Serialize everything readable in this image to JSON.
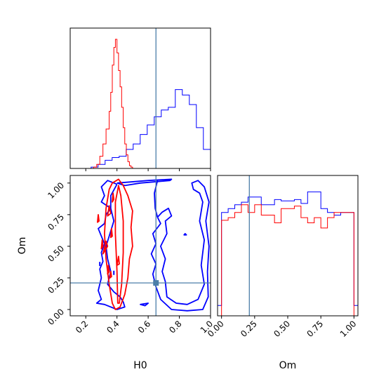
{
  "chart_data": {
    "type": "corner",
    "params": [
      "H0",
      "Om"
    ],
    "colors": {
      "series_a": "#0000ff",
      "series_b": "#ff0000",
      "truth": "#4b7ea8"
    },
    "truth": {
      "H0": 0.65,
      "Om": 0.21
    },
    "panels": {
      "H0_hist": {
        "xlim": [
          0.1,
          1.0
        ],
        "xticks": [
          0.2,
          0.4,
          0.6,
          0.8,
          1.0
        ],
        "bin_edges": [
          0.1,
          0.12,
          0.14,
          0.16,
          0.18,
          0.2,
          0.22,
          0.24,
          0.26,
          0.28,
          0.3,
          0.32,
          0.34,
          0.36,
          0.38,
          0.4,
          0.42,
          0.44,
          0.46,
          0.48,
          0.5,
          0.52,
          0.54,
          0.56,
          0.58,
          0.6,
          0.62,
          0.64,
          0.66,
          0.68,
          0.7,
          0.72,
          0.74,
          0.76,
          0.78,
          0.8,
          0.82,
          0.84,
          0.86,
          0.88,
          0.9,
          0.92,
          0.94,
          0.96,
          0.98,
          1.0
        ],
        "series": [
          {
            "color_key": "series_a",
            "edges": [
              0.1,
              0.144,
              0.189,
              0.234,
              0.279,
              0.324,
              0.369,
              0.414,
              0.459,
              0.504,
              0.549,
              0.594,
              0.639,
              0.684,
              0.729,
              0.774,
              0.819,
              0.864,
              0.909,
              0.954,
              1.0
            ],
            "counts": [
              0,
              0,
              0,
              1,
              3,
              6,
              8,
              9,
              14,
              18,
              25,
              32,
              38,
              43,
              45,
              58,
              54,
              47,
              30,
              14
            ]
          },
          {
            "color_key": "series_b",
            "edges": [
              0.1,
              0.13,
              0.15,
              0.17,
              0.19,
              0.21,
              0.23,
              0.25,
              0.27,
              0.29,
              0.31,
              0.33,
              0.35,
              0.36,
              0.37,
              0.38,
              0.39,
              0.4,
              0.41,
              0.42,
              0.43,
              0.44,
              0.45,
              0.46,
              0.47,
              0.48,
              0.49,
              0.5,
              0.52
            ],
            "counts": [
              0,
              0,
              0,
              0,
              0,
              0,
              0,
              1,
              3,
              9,
              18,
              29,
              42,
              56,
              76,
              89,
              95,
              85,
              72,
              60,
              45,
              30,
              18,
              10,
              5,
              2,
              1,
              0
            ]
          }
        ]
      },
      "Om_hist": {
        "xlim": [
          -0.03,
          1.03
        ],
        "xticks": [
          0.0,
          0.25,
          0.5,
          0.75,
          1.0
        ],
        "series": [
          {
            "color_key": "series_a",
            "edges": [
              -0.03,
              0.0,
              0.05,
              0.1,
              0.15,
              0.2,
              0.25,
              0.3,
              0.35,
              0.4,
              0.45,
              0.5,
              0.55,
              0.6,
              0.65,
              0.7,
              0.75,
              0.8,
              0.85,
              0.9,
              0.95,
              1.0,
              1.03
            ],
            "counts": [
              0.08,
              0.8,
              0.83,
              0.86,
              0.88,
              0.92,
              0.92,
              0.86,
              0.86,
              0.9,
              0.89,
              0.89,
              0.9,
              0.87,
              0.96,
              0.96,
              0.83,
              0.8,
              0.78,
              0.8,
              0.8,
              0.08
            ]
          },
          {
            "color_key": "series_b",
            "edges": [
              -0.03,
              0.0,
              0.05,
              0.1,
              0.15,
              0.2,
              0.25,
              0.3,
              0.35,
              0.4,
              0.45,
              0.5,
              0.55,
              0.6,
              0.65,
              0.7,
              0.75,
              0.8,
              0.85,
              0.9,
              0.95,
              1.0,
              1.03
            ],
            "counts": [
              0.0,
              0.74,
              0.76,
              0.8,
              0.86,
              0.8,
              0.86,
              0.78,
              0.78,
              0.72,
              0.83,
              0.83,
              0.85,
              0.76,
              0.72,
              0.76,
              0.68,
              0.76,
              0.8,
              0.8,
              0.8,
              0.0
            ]
          }
        ]
      },
      "joint": {
        "xlim": [
          0.1,
          1.0
        ],
        "ylim": [
          -0.05,
          1.06
        ],
        "xticks": [
          0.2,
          0.4,
          0.6,
          0.8,
          1.0
        ],
        "yticks": [
          0.0,
          0.25,
          0.5,
          0.75,
          1.0
        ],
        "xlabel": "H0",
        "ylabel": "Om",
        "contours": [
          {
            "color_key": "series_a",
            "closed": false,
            "points": [
              [
                0.4,
                1.0
              ],
              [
                0.6,
                1.02
              ],
              [
                0.75,
                1.03
              ],
              [
                0.74,
                1.02
              ],
              [
                0.55,
                1.0
              ],
              [
                0.45,
                0.98
              ],
              [
                0.4,
                1.0
              ]
            ]
          },
          {
            "color_key": "series_a",
            "closed": false,
            "points": [
              [
                0.66,
                0.73
              ],
              [
                0.645,
                0.8
              ],
              [
                0.64,
                0.92
              ],
              [
                0.66,
                1.02
              ]
            ]
          },
          {
            "color_key": "series_a",
            "closed": false,
            "points": [
              [
                0.4,
                0.99
              ],
              [
                0.34,
                1.02
              ],
              [
                0.3,
                0.97
              ],
              [
                0.32,
                0.9
              ],
              [
                0.3,
                0.85
              ],
              [
                0.36,
                0.8
              ],
              [
                0.33,
                0.75
              ],
              [
                0.32,
                0.68
              ],
              [
                0.28,
                0.64
              ],
              [
                0.3,
                0.58
              ],
              [
                0.32,
                0.52
              ],
              [
                0.3,
                0.45
              ],
              [
                0.31,
                0.38
              ],
              [
                0.29,
                0.32
              ],
              [
                0.3,
                0.25
              ],
              [
                0.28,
                0.15
              ],
              [
                0.3,
                0.08
              ],
              [
                0.27,
                0.05
              ],
              [
                0.32,
                0.04
              ],
              [
                0.4,
                0.0
              ],
              [
                0.45,
                0.02
              ],
              [
                0.44,
                0.06
              ],
              [
                0.42,
                0.1
              ],
              [
                0.38,
                0.14
              ],
              [
                0.34,
                0.2
              ],
              [
                0.36,
                0.3
              ],
              [
                0.34,
                0.4
              ],
              [
                0.33,
                0.5
              ],
              [
                0.36,
                0.62
              ],
              [
                0.38,
                0.7
              ],
              [
                0.36,
                0.8
              ],
              [
                0.36,
                0.9
              ],
              [
                0.4,
                0.99
              ]
            ]
          },
          {
            "color_key": "series_a",
            "closed": false,
            "points": [
              [
                0.66,
                0.73
              ],
              [
                0.68,
                0.68
              ],
              [
                0.63,
                0.6
              ],
              [
                0.65,
                0.52
              ],
              [
                0.62,
                0.44
              ],
              [
                0.65,
                0.36
              ],
              [
                0.63,
                0.28
              ],
              [
                0.65,
                0.18
              ],
              [
                0.68,
                0.08
              ],
              [
                0.75,
                0.0
              ],
              [
                0.85,
                -0.01
              ],
              [
                0.95,
                0.0
              ],
              [
                0.985,
                0.1
              ],
              [
                0.98,
                0.3
              ],
              [
                0.99,
                0.5
              ],
              [
                0.97,
                0.7
              ],
              [
                0.99,
                0.85
              ],
              [
                0.96,
                0.97
              ],
              [
                0.92,
                1.02
              ],
              [
                0.88,
                1.0
              ],
              [
                0.89,
                0.95
              ],
              [
                0.93,
                0.92
              ],
              [
                0.95,
                0.85
              ],
              [
                0.93,
                0.7
              ],
              [
                0.96,
                0.55
              ],
              [
                0.94,
                0.35
              ],
              [
                0.96,
                0.2
              ],
              [
                0.92,
                0.08
              ],
              [
                0.85,
                0.04
              ],
              [
                0.78,
                0.05
              ],
              [
                0.72,
                0.1
              ],
              [
                0.71,
                0.22
              ],
              [
                0.69,
                0.3
              ],
              [
                0.71,
                0.4
              ],
              [
                0.68,
                0.5
              ],
              [
                0.72,
                0.6
              ],
              [
                0.71,
                0.7
              ],
              [
                0.75,
                0.74
              ],
              [
                0.73,
                0.8
              ],
              [
                0.69,
                0.77
              ],
              [
                0.66,
                0.73
              ]
            ]
          },
          {
            "color_key": "series_a",
            "closed": true,
            "points": [
              [
                0.55,
                0.04
              ],
              [
                0.6,
                0.05
              ],
              [
                0.58,
                0.03
              ]
            ]
          },
          {
            "color_key": "series_a",
            "closed": true,
            "points": [
              [
                0.83,
                0.59
              ],
              [
                0.845,
                0.59
              ],
              [
                0.837,
                0.6
              ]
            ]
          },
          {
            "color_key": "series_b",
            "closed": true,
            "points": [
              [
                0.37,
                0.05
              ],
              [
                0.35,
                0.2
              ],
              [
                0.33,
                0.4
              ],
              [
                0.32,
                0.6
              ],
              [
                0.33,
                0.8
              ],
              [
                0.35,
                0.95
              ],
              [
                0.37,
                1.0
              ],
              [
                0.41,
                1.03
              ],
              [
                0.44,
                0.98
              ],
              [
                0.47,
                0.9
              ],
              [
                0.5,
                0.78
              ],
              [
                0.49,
                0.65
              ],
              [
                0.5,
                0.5
              ],
              [
                0.48,
                0.4
              ],
              [
                0.47,
                0.25
              ],
              [
                0.45,
                0.12
              ],
              [
                0.42,
                0.02
              ],
              [
                0.39,
                0.0
              ],
              [
                0.37,
                0.05
              ]
            ]
          },
          {
            "color_key": "series_b",
            "closed": true,
            "points": [
              [
                0.405,
                0.05
              ],
              [
                0.4,
                0.3
              ],
              [
                0.39,
                0.6
              ],
              [
                0.39,
                0.85
              ],
              [
                0.41,
                0.98
              ],
              [
                0.425,
                0.9
              ],
              [
                0.44,
                0.7
              ],
              [
                0.44,
                0.45
              ],
              [
                0.43,
                0.2
              ],
              [
                0.415,
                0.05
              ],
              [
                0.405,
                0.05
              ]
            ]
          },
          {
            "color_key": "series_b",
            "closed": true,
            "points": [
              [
                0.34,
                0.74
              ],
              [
                0.35,
                0.82
              ],
              [
                0.36,
                0.76
              ]
            ]
          },
          {
            "color_key": "series_b",
            "closed": true,
            "points": [
              [
                0.31,
                0.44
              ],
              [
                0.33,
                0.54
              ],
              [
                0.34,
                0.5
              ]
            ]
          },
          {
            "color_key": "series_b",
            "closed": true,
            "points": [
              [
                0.36,
                0.57
              ],
              [
                0.365,
                0.64
              ],
              [
                0.37,
                0.58
              ]
            ]
          },
          {
            "color_key": "series_b",
            "closed": true,
            "points": [
              [
                0.3,
                0.48
              ],
              [
                0.305,
                0.55
              ],
              [
                0.31,
                0.5
              ]
            ]
          },
          {
            "color_key": "series_b",
            "closed": true,
            "points": [
              [
                0.275,
                0.69
              ],
              [
                0.28,
                0.75
              ],
              [
                0.285,
                0.7
              ]
            ]
          },
          {
            "color_key": "series_b",
            "closed": true,
            "points": [
              [
                0.355,
                0.25
              ],
              [
                0.36,
                0.3
              ],
              [
                0.365,
                0.26
              ]
            ]
          },
          {
            "color_key": "series_b",
            "closed": true,
            "points": [
              [
                0.37,
                0.85
              ],
              [
                0.375,
                0.92
              ],
              [
                0.38,
                0.87
              ]
            ]
          },
          {
            "color_key": "series_b",
            "closed": true,
            "points": [
              [
                0.34,
                0.28
              ],
              [
                0.345,
                0.35
              ],
              [
                0.35,
                0.3
              ]
            ]
          },
          {
            "color_key": "series_b",
            "closed": true,
            "points": [
              [
                0.4,
                0.35
              ],
              [
                0.41,
                0.42
              ],
              [
                0.415,
                0.36
              ]
            ]
          }
        ],
        "small_marks": [
          {
            "color_key": "series_a",
            "x": 0.38,
            "y": 0.29
          },
          {
            "color_key": "series_a",
            "x": 0.29,
            "y": 0.36
          },
          {
            "color_key": "series_a",
            "x": 0.65,
            "y": 0.21
          }
        ]
      }
    }
  }
}
